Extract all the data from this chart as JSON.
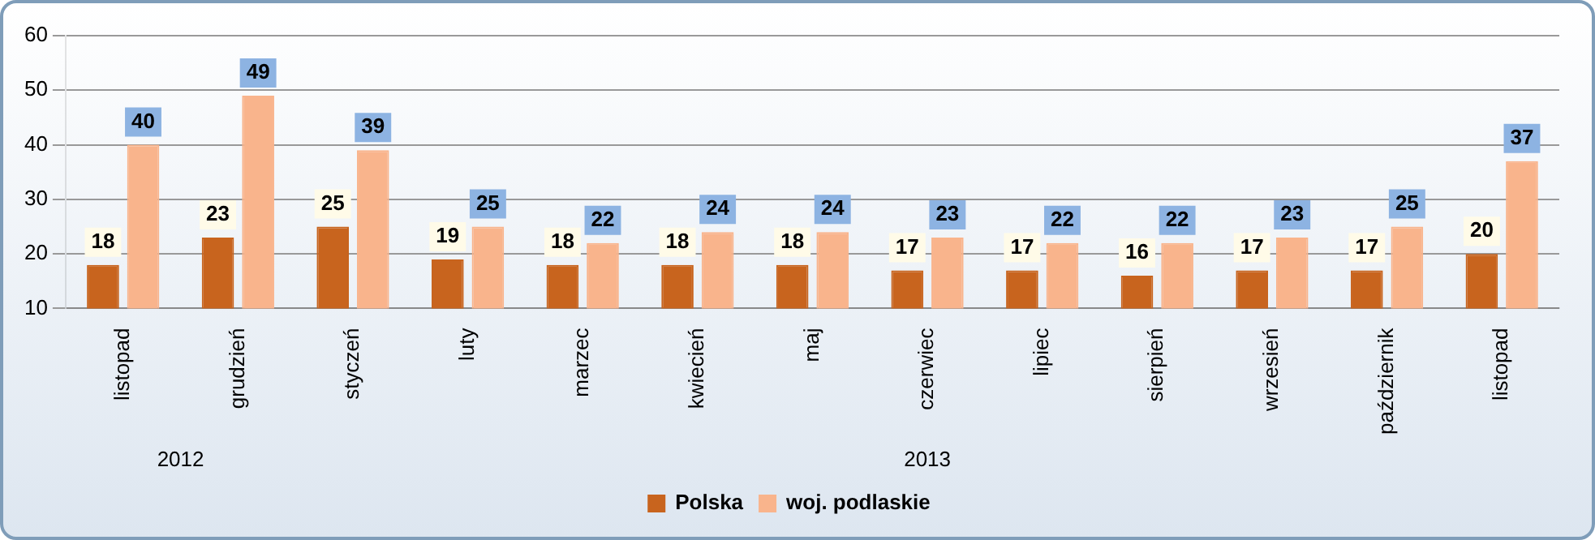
{
  "chart_data": {
    "type": "bar",
    "categories": [
      "listopad",
      "grudzień",
      "styczeń",
      "luty",
      "marzec",
      "kwiecień",
      "maj",
      "czerwiec",
      "lipiec",
      "sierpień",
      "wrzesień",
      "październik",
      "listopad"
    ],
    "series": [
      {
        "name": "Polska",
        "color": "#c8641e",
        "values": [
          18,
          23,
          25,
          19,
          18,
          18,
          18,
          17,
          17,
          16,
          17,
          17,
          20
        ]
      },
      {
        "name": "woj. podlaskie",
        "color": "#f9b48c",
        "values": [
          40,
          49,
          39,
          25,
          22,
          24,
          24,
          23,
          22,
          22,
          23,
          25,
          37
        ]
      }
    ],
    "ylim": [
      10,
      60
    ],
    "yticks": [
      10,
      20,
      30,
      40,
      50,
      60
    ],
    "grid": "y",
    "legend": "bottom",
    "data_labels": true,
    "annotations": [
      "2012",
      "2013"
    ]
  }
}
